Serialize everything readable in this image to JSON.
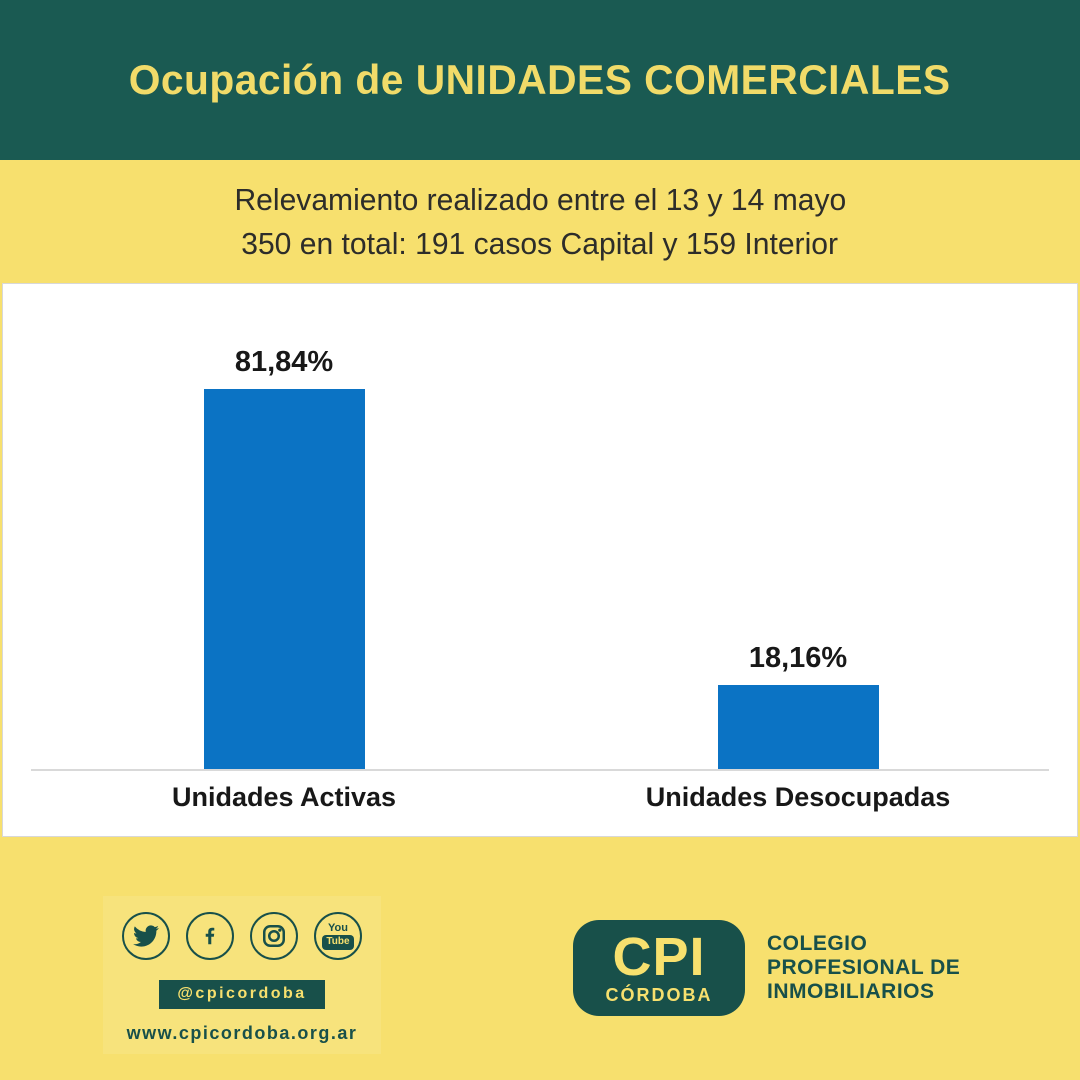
{
  "header": {
    "title": "Ocupación de UNIDADES COMERCIALES"
  },
  "subtitle": {
    "line1": "Relevamiento realizado entre el 13 y 14 mayo",
    "line2": "350 en total: 191 casos Capital y 159 Interior"
  },
  "chart_data": {
    "type": "bar",
    "categories": [
      "Unidades Activas",
      "Unidades Desocupadas"
    ],
    "values": [
      81.84,
      18.16
    ],
    "value_labels": [
      "81,84%",
      "18,16%"
    ],
    "title": "Ocupación de UNIDADES COMERCIALES",
    "xlabel": "",
    "ylabel": "",
    "ylim": [
      0,
      100
    ],
    "grid": false,
    "legend": false,
    "bar_color": "#0b73c4",
    "layout_hints": {
      "value_labels_position": "above-bars",
      "axis_line_color": "#d9d9d9",
      "background": "#ffffff"
    }
  },
  "footer": {
    "social": {
      "icons": [
        "twitter-icon",
        "facebook-icon",
        "instagram-icon",
        "youtube-icon"
      ],
      "youtube_you": "You",
      "youtube_tube": "Tube",
      "handle": "@cpicordoba",
      "website": "www.cpicordoba.org.ar"
    },
    "brand": {
      "logo_acronym": "CPI",
      "logo_city": "CÓRDOBA",
      "org_line1": "COLEGIO",
      "org_line2": "PROFESIONAL DE",
      "org_line3": "INMOBILIARIOS"
    }
  },
  "colors": {
    "header_teal": "#1a5a52",
    "accent_teal": "#18504a",
    "band_yellow": "#f7e06e",
    "title_yellow": "#f1db69",
    "bar_blue": "#0b73c4"
  }
}
